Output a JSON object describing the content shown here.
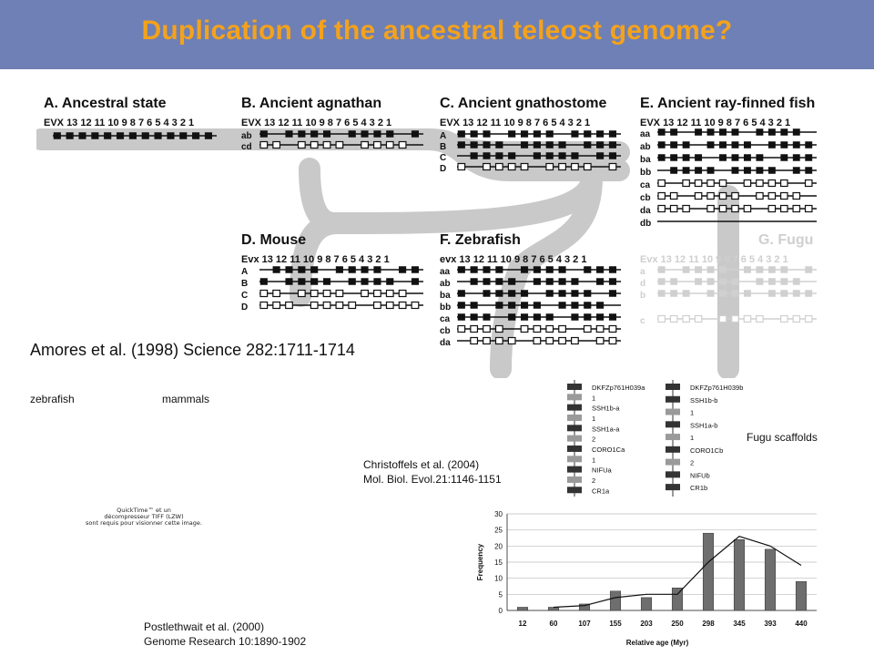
{
  "title": "Duplication of the ancestral teleost genome?",
  "panels": [
    {
      "heading": "A. Ancestral state",
      "gene_header": "EVX 13 12 11 10 9 8 7 6 5 4 3 2 1"
    },
    {
      "heading": "B. Ancient agnathan",
      "gene_header": "EVX 13 12 11 10 9 8 7 6 5 4 3 2 1",
      "rows": [
        "ab",
        "cd"
      ]
    },
    {
      "heading": "C. Ancient gnathostome",
      "gene_header": "EVX 13 12 11 10 9 8 7 6 5 4 3 2 1",
      "rows": [
        "A",
        "B",
        "C",
        "D"
      ]
    },
    {
      "heading": "E. Ancient ray-finned fish",
      "gene_header": "EVX 13 12 11 10 9 8 7 6 5 4 3 2 1",
      "rows": [
        "aa",
        "ab",
        "ba",
        "bb",
        "ca",
        "cb",
        "da",
        "db"
      ]
    },
    {
      "heading": "D. Mouse",
      "gene_header": "Evx 13 12 11 10 9 8 7 6 5 4 3 2 1",
      "rows": [
        "A",
        "B",
        "C",
        "D"
      ]
    },
    {
      "heading": "F. Zebrafish",
      "gene_header": "evx 13 12 11 10 9 8 7 6 5 4 3 2 1",
      "rows": [
        "aa",
        "ab",
        "ba",
        "bb",
        "ca",
        "cb",
        "da"
      ]
    },
    {
      "heading": "G. Fugu",
      "gene_header": "Evx 13 12 11 10 9 8 7 6 5 4 3 2 1",
      "rows": [
        "a",
        "d",
        "b",
        "c"
      ]
    }
  ],
  "citation_amores": "Amores et al. (1998) Science 282:1711-1714",
  "label_zebrafish": "zebrafish",
  "label_mammals": "mammals",
  "chromosome_a": [
    "DKFZp761H039a",
    "1",
    "SSH1b-a",
    "1",
    "SSH1a-a",
    "2",
    "CORO1Ca",
    "1",
    "NIFUa",
    "2",
    "CR1a"
  ],
  "chromosome_b": [
    "DKFZp761H039b",
    "SSH1b-b",
    "1",
    "SSH1a-b",
    "1",
    "CORO1Cb",
    "2",
    "NIFUb",
    "CR1b"
  ],
  "fugu_label": "Fugu scaffolds",
  "citation_christoffels": [
    "Christoffels et al. (2004)",
    "Mol. Biol. Evol.21:1146-1151"
  ],
  "quicktime_text": [
    "QuickTime™ et un",
    "décompresseur TIFF (LZW)",
    "sont requis pour visionner cette image."
  ],
  "citation_postlethwait": [
    "Postlethwait et al. (2000)",
    "Genome Research 10:1890-1902"
  ],
  "chart_data": {
    "type": "bar",
    "categories": [
      "12",
      "60",
      "107",
      "155",
      "203",
      "250",
      "298",
      "345",
      "393",
      "440"
    ],
    "series": [
      {
        "values": [
          1,
          1,
          2,
          6,
          4,
          7,
          24,
          22,
          19,
          9
        ]
      },
      {
        "type": "line",
        "values": [
          null,
          1,
          1.5,
          4,
          5,
          5,
          15,
          23,
          20,
          14
        ]
      }
    ],
    "xlabel": "Relative age (Myr)",
    "ylabel": "Frequency",
    "ylim": [
      0,
      30
    ],
    "yticks": [
      "0",
      "5",
      "10",
      "15",
      "20",
      "25",
      "30"
    ],
    "grid": true
  }
}
